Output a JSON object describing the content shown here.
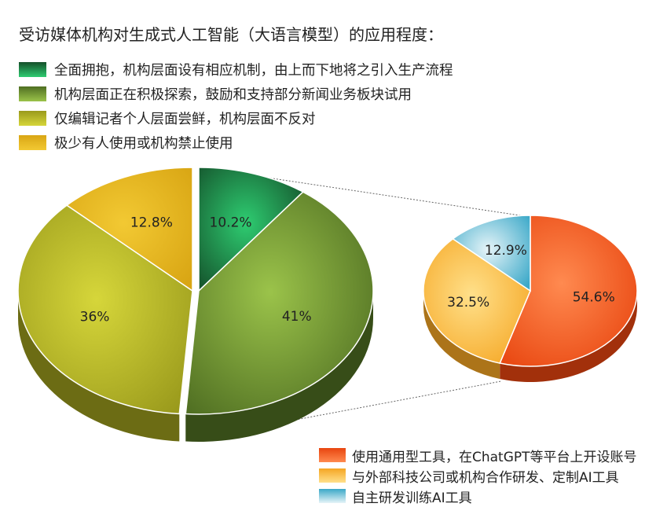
{
  "chart_data": [
    {
      "type": "pie",
      "title": "受访媒体机构对生成式人工智能（大语言模型）的应用程度：",
      "categories": [
        "全面拥抱，机构层面设有相应机制，由上而下地将之引入生产流程",
        "机构层面正在积极探索，鼓励和支持部分新闻业务板块试用",
        "仅编辑记者个人层面尝鲜，机构层面不反对",
        "极少有人使用或机构禁止使用"
      ],
      "values": [
        10.2,
        41,
        36,
        12.8
      ],
      "labels": [
        "10.2%",
        "41%",
        "36%",
        "12.8%"
      ],
      "colors": [
        [
          "#2ecc71",
          "#14502a"
        ],
        [
          "#9bc34a",
          "#4f6e22"
        ],
        [
          "#d6d63a",
          "#9a9a1c"
        ],
        [
          "#f2c933",
          "#d9a614"
        ]
      ],
      "legend": "top-left"
    },
    {
      "type": "pie",
      "categories": [
        "使用通用型工具，在ChatGPT等平台上开设账号",
        "与外部科技公司或机构合作研发、定制AI工具",
        "自主研发训练AI工具"
      ],
      "values": [
        54.6,
        32.5,
        12.9
      ],
      "labels": [
        "54.6%",
        "32.5%",
        "12.9%"
      ],
      "colors": [
        [
          "#ff8a50",
          "#e8450f"
        ],
        [
          "#ffe08a",
          "#f5a623"
        ],
        [
          "#e6f4f8",
          "#3aa8c8"
        ]
      ],
      "legend": "bottom-right"
    }
  ]
}
